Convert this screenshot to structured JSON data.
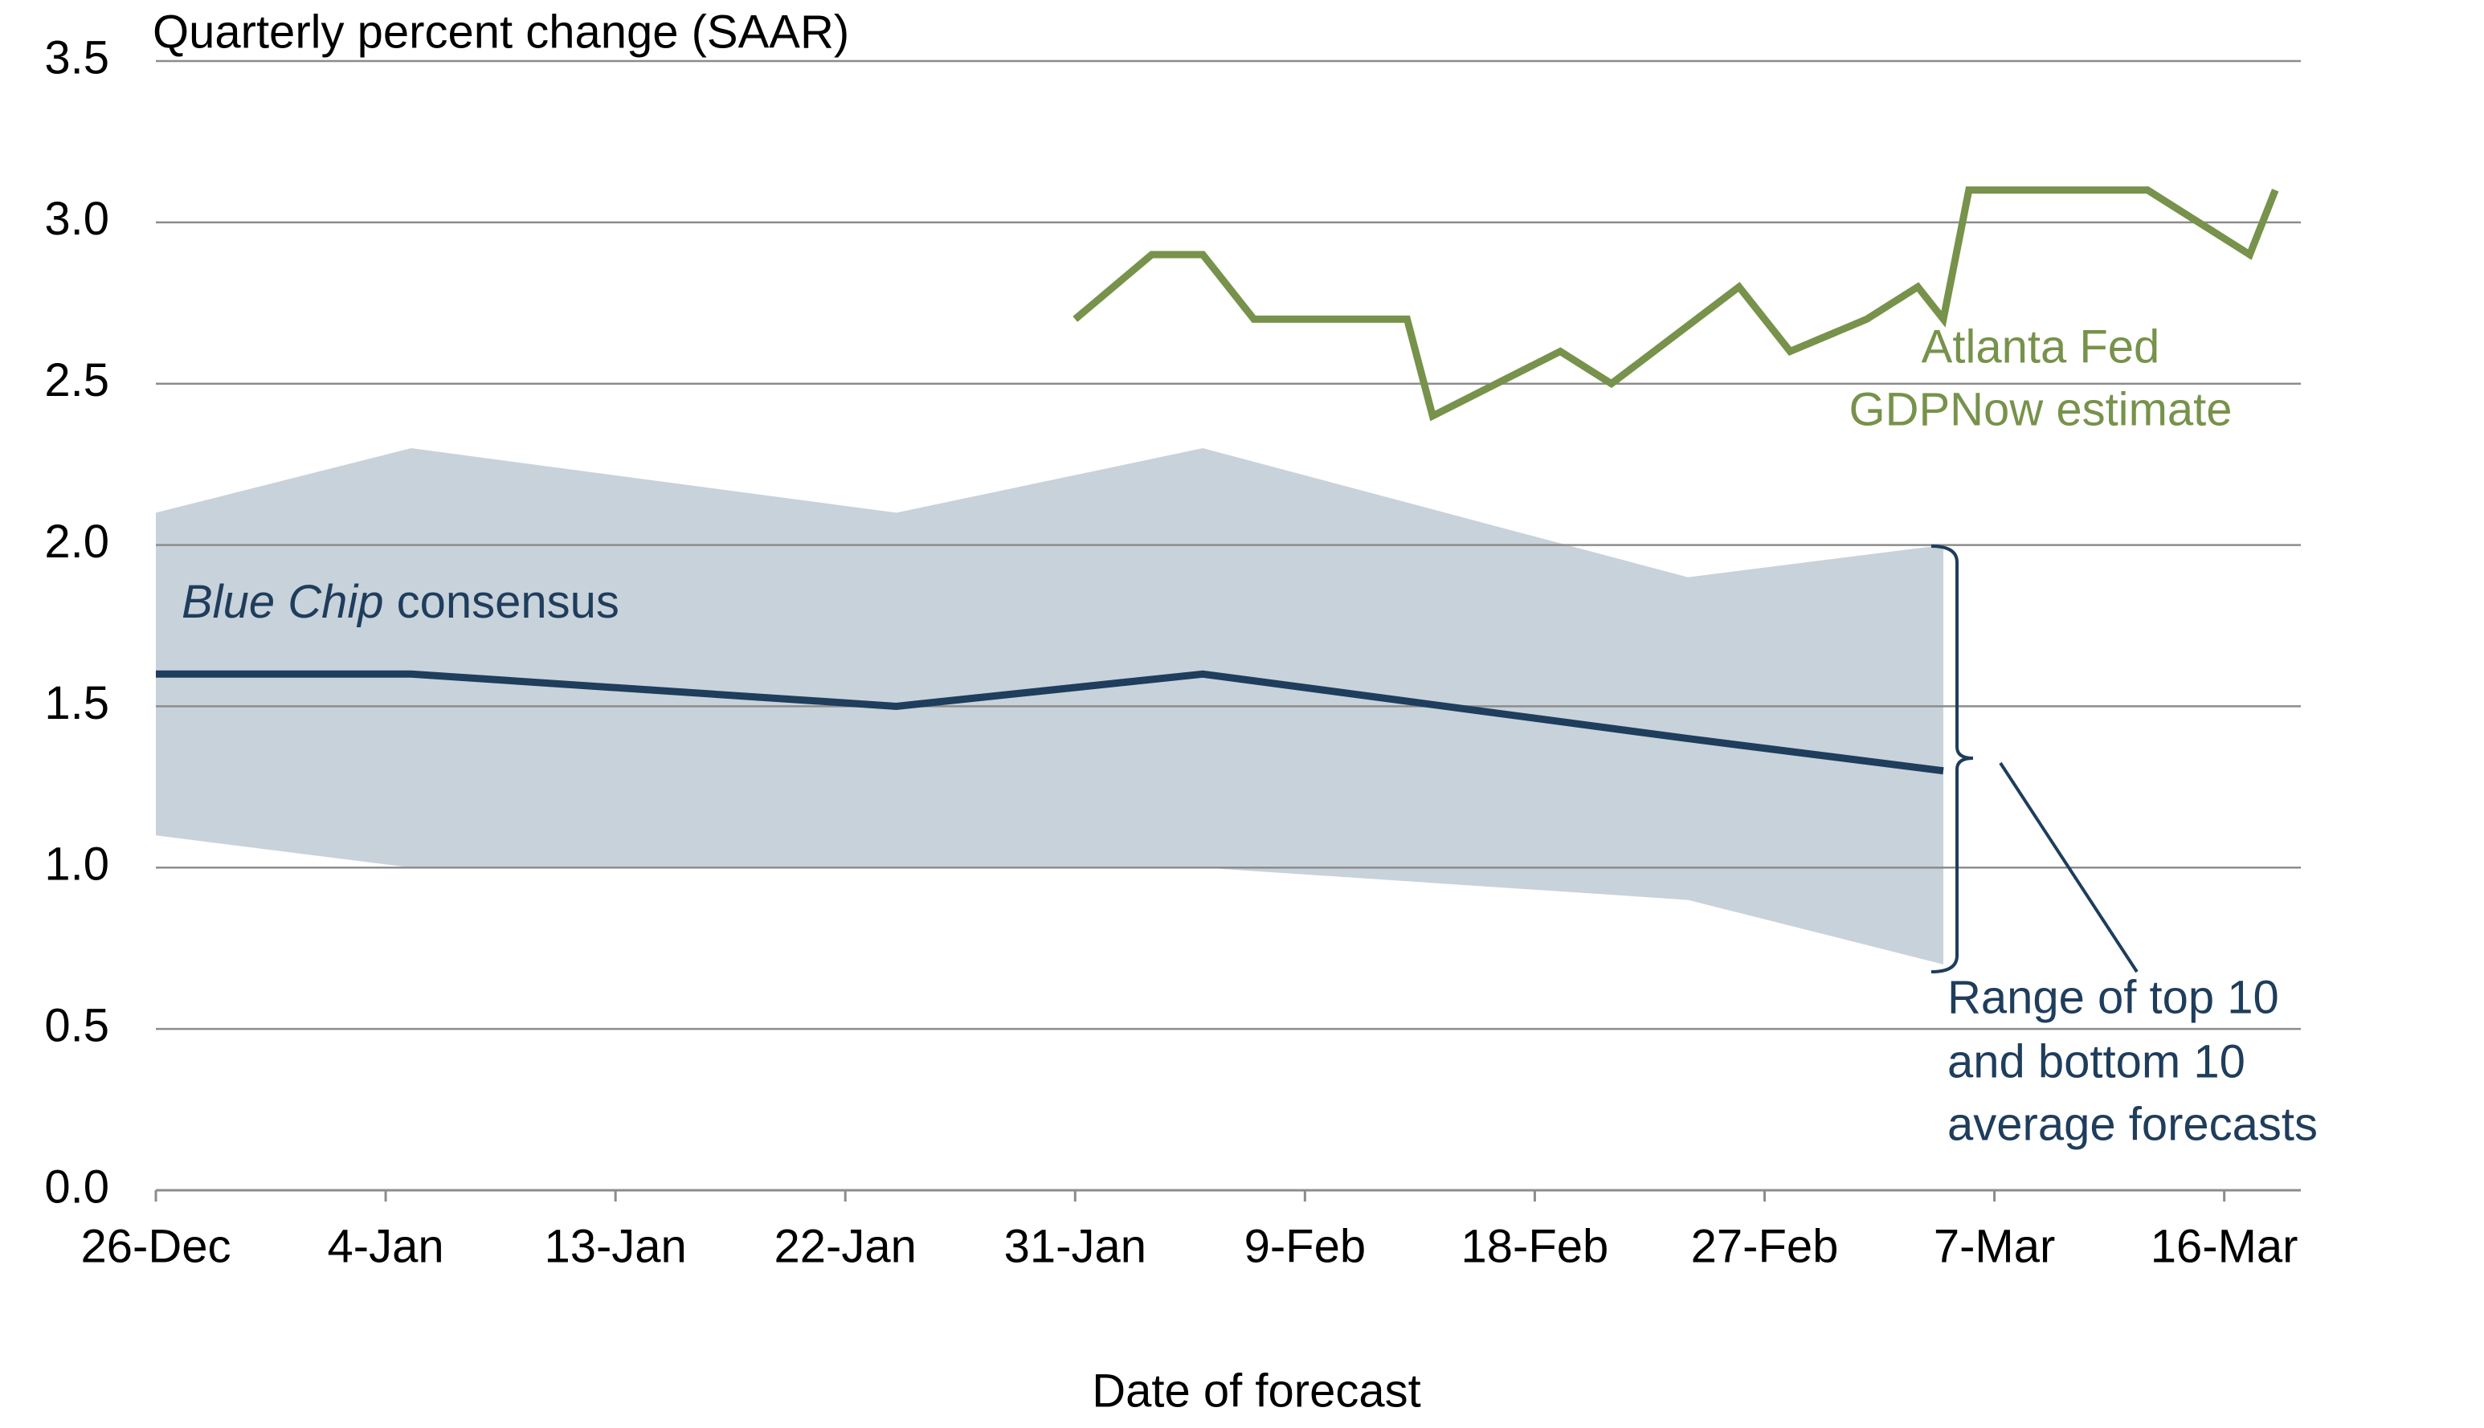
{
  "chart_data": {
    "type": "line",
    "title": "Quarterly percent change (SAAR)",
    "xlabel": "Date of forecast",
    "xlim": [
      "26-Dec",
      "19-Mar"
    ],
    "xticks": [
      "26-Dec",
      "4-Jan",
      "13-Jan",
      "22-Jan",
      "31-Jan",
      "9-Feb",
      "18-Feb",
      "27-Feb",
      "7-Mar",
      "16-Mar"
    ],
    "ylim": [
      0,
      3.5
    ],
    "yticks": [
      {
        "value": 0,
        "label": "0.0"
      },
      0.5,
      {
        "value": 1,
        "label": "1.0"
      },
      1.5,
      {
        "value": 2,
        "label": "2.0"
      },
      2.5,
      {
        "value": 3,
        "label": "3.0"
      },
      3.5
    ],
    "grid": true,
    "band": {
      "color": "#c8d2da",
      "x": [
        "26-Dec",
        "5-Jan",
        "24-Jan",
        "5-Feb",
        "24-Feb",
        "5-Mar"
      ],
      "low": [
        1.1,
        1.0,
        1.0,
        1.0,
        0.9,
        0.7
      ],
      "high": [
        2.1,
        2.3,
        2.1,
        2.3,
        1.9,
        2.0
      ]
    },
    "series": [
      {
        "color": "#1f3d5c",
        "x": [
          "26-Dec",
          "5-Jan",
          "24-Jan",
          "5-Feb",
          "24-Feb",
          "5-Mar"
        ],
        "values": [
          1.6,
          1.6,
          1.5,
          1.6,
          1.4,
          1.3
        ]
      },
      {
        "color": "#77924a",
        "x": [
          "31-Jan",
          "3-Feb",
          "5-Feb",
          "7-Feb",
          "13-Feb",
          "14-Feb",
          "19-Feb",
          "21-Feb",
          "26-Feb",
          "28-Feb",
          "2-Mar",
          "4-Mar",
          "5-Mar",
          "6-Mar",
          "13-Mar",
          "17-Mar",
          "18-Mar"
        ],
        "values": [
          2.7,
          2.9,
          2.9,
          2.7,
          2.7,
          2.4,
          2.6,
          2.5,
          2.8,
          2.6,
          2.7,
          2.8,
          2.7,
          3.1,
          3.1,
          2.9,
          3.1
        ]
      }
    ],
    "annotations": {
      "gdpnow": [
        "Atlanta Fed",
        "GDPNow estimate"
      ],
      "bluechip": {
        "italic": "Blue Chip",
        "text": " consensus"
      },
      "range": [
        "Range of top 10",
        "and bottom 10",
        "average forecasts"
      ]
    }
  }
}
